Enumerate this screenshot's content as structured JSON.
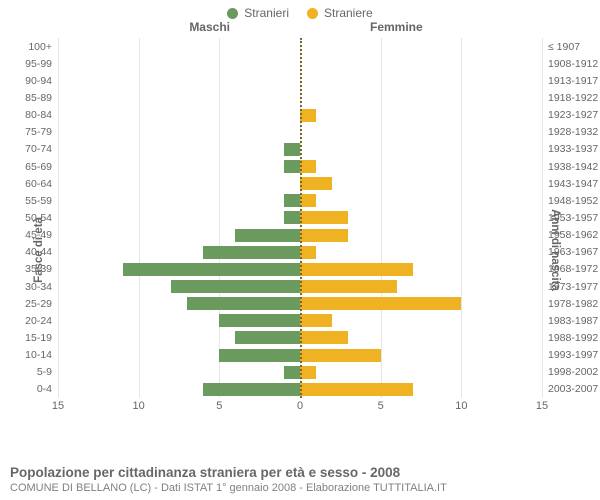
{
  "chart": {
    "type": "population-pyramid",
    "legend": {
      "male": {
        "label": "Stranieri",
        "color": "#6a9a5d"
      },
      "female": {
        "label": "Straniere",
        "color": "#eeb222"
      }
    },
    "column_headers": {
      "male": "Maschi",
      "female": "Femmine"
    },
    "axis_titles": {
      "left": "Fasce di età",
      "right": "Anni di nascita"
    },
    "x_axis": {
      "max": 15,
      "ticks": [
        15,
        10,
        5,
        0,
        5,
        10,
        15
      ]
    },
    "grid_color": "#e6e6e6",
    "center_line_color": "#7a6a2a",
    "background_color": "#ffffff",
    "text_color": "#666666",
    "rows": [
      {
        "age": "100+",
        "birth": "≤ 1907",
        "m": 0,
        "f": 0
      },
      {
        "age": "95-99",
        "birth": "1908-1912",
        "m": 0,
        "f": 0
      },
      {
        "age": "90-94",
        "birth": "1913-1917",
        "m": 0,
        "f": 0
      },
      {
        "age": "85-89",
        "birth": "1918-1922",
        "m": 0,
        "f": 0
      },
      {
        "age": "80-84",
        "birth": "1923-1927",
        "m": 0,
        "f": 1
      },
      {
        "age": "75-79",
        "birth": "1928-1932",
        "m": 0,
        "f": 0
      },
      {
        "age": "70-74",
        "birth": "1933-1937",
        "m": 1,
        "f": 0
      },
      {
        "age": "65-69",
        "birth": "1938-1942",
        "m": 1,
        "f": 1
      },
      {
        "age": "60-64",
        "birth": "1943-1947",
        "m": 0,
        "f": 2
      },
      {
        "age": "55-59",
        "birth": "1948-1952",
        "m": 1,
        "f": 1
      },
      {
        "age": "50-54",
        "birth": "1953-1957",
        "m": 1,
        "f": 3
      },
      {
        "age": "45-49",
        "birth": "1958-1962",
        "m": 4,
        "f": 3
      },
      {
        "age": "40-44",
        "birth": "1963-1967",
        "m": 6,
        "f": 1
      },
      {
        "age": "35-39",
        "birth": "1968-1972",
        "m": 11,
        "f": 7
      },
      {
        "age": "30-34",
        "birth": "1973-1977",
        "m": 8,
        "f": 6
      },
      {
        "age": "25-29",
        "birth": "1978-1982",
        "m": 7,
        "f": 10
      },
      {
        "age": "20-24",
        "birth": "1983-1987",
        "m": 5,
        "f": 2
      },
      {
        "age": "15-19",
        "birth": "1988-1992",
        "m": 4,
        "f": 3
      },
      {
        "age": "10-14",
        "birth": "1993-1997",
        "m": 5,
        "f": 5
      },
      {
        "age": "5-9",
        "birth": "1998-2002",
        "m": 1,
        "f": 1
      },
      {
        "age": "0-4",
        "birth": "2003-2007",
        "m": 6,
        "f": 7
      }
    ],
    "title": "Popolazione per cittadinanza straniera per età e sesso - 2008",
    "subtitle": "COMUNE DI BELLANO (LC) - Dati ISTAT 1° gennaio 2008 - Elaborazione TUTTITALIA.IT",
    "title_fontsize": 13.5,
    "subtitle_fontsize": 11,
    "label_fontsize": 10.5
  }
}
